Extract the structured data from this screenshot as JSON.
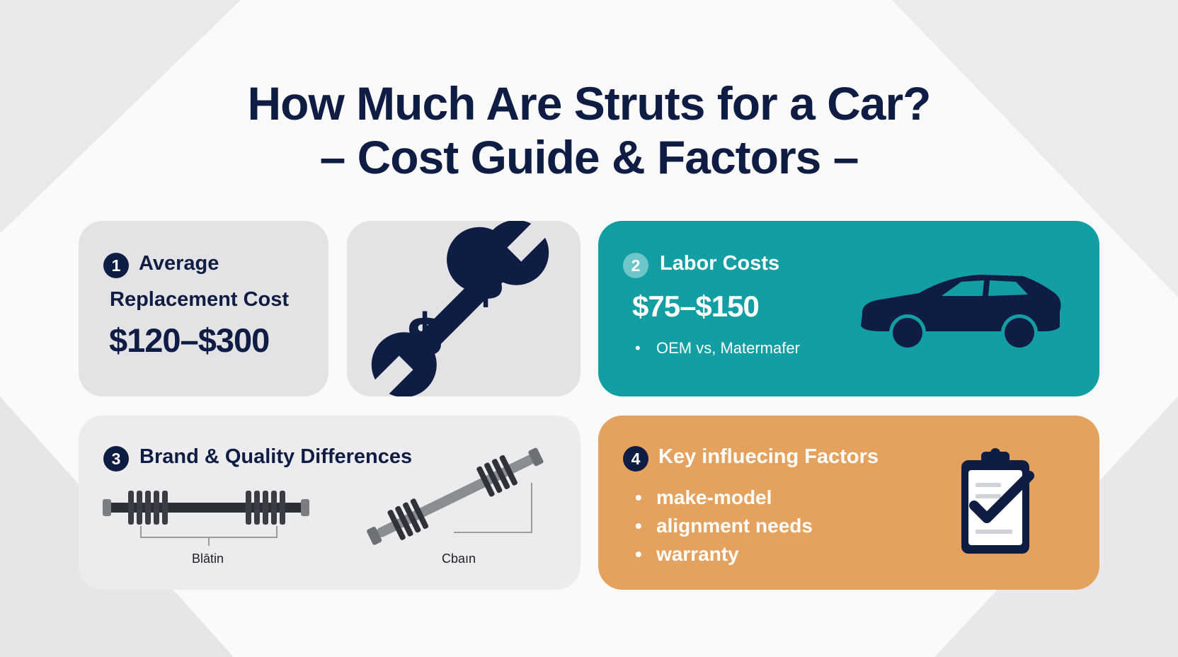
{
  "title": {
    "line1": "How Much Are Struts for a Car?",
    "line2": "– Cost Guide & Factors –"
  },
  "card1": {
    "number": "1",
    "heading_line1": "Average",
    "heading_line2": "Replacement Cost",
    "price": "$120–$300"
  },
  "icon_card": {
    "icon": "wrench-dollar-icon"
  },
  "card2": {
    "number": "2",
    "heading": "Labor Costs",
    "price": "$75–$150",
    "bullet": "OEM vs, Matermafer",
    "icon": "car-icon"
  },
  "card3": {
    "number": "3",
    "heading": "Brand & Quality Differences",
    "label_left": "Blātin",
    "label_right": "Cbaın"
  },
  "card4": {
    "number": "4",
    "heading": "Key influecing Factors",
    "bullets": [
      "make-model",
      "alignment needs",
      "warranty"
    ],
    "icon": "clipboard-check-icon"
  },
  "colors": {
    "navy": "#0f1d44",
    "teal": "#139ea4",
    "orange": "#e4a25e",
    "card_gray": "#e3e3e5"
  }
}
